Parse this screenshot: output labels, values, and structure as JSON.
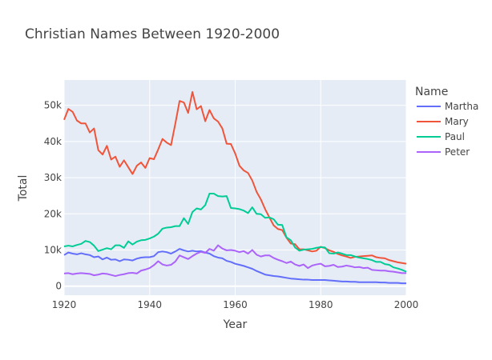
{
  "chart_data": {
    "type": "line",
    "title": "Christian Names Between 1920-2000",
    "xlabel": "Year",
    "ylabel": "Total",
    "xlim": [
      1920,
      2000
    ],
    "ylim": [
      -2500,
      57000
    ],
    "xticks": [
      1920,
      1940,
      1960,
      1980,
      2000
    ],
    "yticks": [
      0,
      10000,
      20000,
      30000,
      40000,
      50000
    ],
    "ytick_labels": [
      "0",
      "10k",
      "20k",
      "30k",
      "40k",
      "50k"
    ],
    "grid": true,
    "legend": {
      "title": "Name",
      "position": "right"
    },
    "x": [
      1920,
      1921,
      1922,
      1923,
      1924,
      1925,
      1926,
      1927,
      1928,
      1929,
      1930,
      1931,
      1932,
      1933,
      1934,
      1935,
      1936,
      1937,
      1938,
      1939,
      1940,
      1941,
      1942,
      1943,
      1944,
      1945,
      1946,
      1947,
      1948,
      1949,
      1950,
      1951,
      1952,
      1953,
      1954,
      1955,
      1956,
      1957,
      1958,
      1959,
      1960,
      1961,
      1962,
      1963,
      1964,
      1965,
      1966,
      1967,
      1968,
      1969,
      1970,
      1971,
      1972,
      1973,
      1974,
      1975,
      1976,
      1977,
      1978,
      1979,
      1980,
      1981,
      1982,
      1983,
      1984,
      1985,
      1986,
      1987,
      1988,
      1989,
      1990,
      1991,
      1992,
      1993,
      1994,
      1995,
      1996,
      1997,
      1998,
      1999,
      2000
    ],
    "series": [
      {
        "name": "Martha",
        "color": "#636efa",
        "values": [
          8600,
          9300,
          9000,
          8800,
          9100,
          8800,
          8600,
          8000,
          8200,
          7400,
          7900,
          7300,
          7400,
          6900,
          7400,
          7300,
          7100,
          7600,
          7900,
          8000,
          8000,
          8300,
          9400,
          9600,
          9400,
          9000,
          9600,
          10300,
          9900,
          9600,
          9800,
          9600,
          9700,
          9300,
          9000,
          8300,
          7900,
          7700,
          7000,
          6700,
          6200,
          5900,
          5600,
          5200,
          4800,
          4200,
          3700,
          3200,
          3000,
          2800,
          2700,
          2500,
          2300,
          2100,
          2000,
          1900,
          1800,
          1800,
          1700,
          1700,
          1700,
          1700,
          1600,
          1500,
          1400,
          1300,
          1300,
          1200,
          1200,
          1100,
          1100,
          1100,
          1100,
          1100,
          1000,
          1000,
          900,
          900,
          900,
          800,
          800
        ]
      },
      {
        "name": "Mary",
        "color": "#ef553b",
        "values": [
          46000,
          49000,
          48200,
          45800,
          45000,
          45000,
          42500,
          43600,
          37600,
          36400,
          38800,
          35000,
          35800,
          33000,
          34800,
          32900,
          31000,
          33300,
          34200,
          32700,
          35400,
          35100,
          37800,
          40700,
          39700,
          39000,
          44900,
          51200,
          50800,
          47900,
          53700,
          48900,
          49800,
          45600,
          48700,
          46400,
          45500,
          43600,
          39400,
          39300,
          36700,
          33300,
          32000,
          31300,
          29200,
          26100,
          24000,
          21300,
          19000,
          16800,
          15800,
          15500,
          13400,
          11800,
          11600,
          10200,
          10200,
          9900,
          9600,
          9800,
          10900,
          10500,
          9900,
          9500,
          8900,
          8500,
          8200,
          7800,
          8100,
          8200,
          8300,
          8400,
          8500,
          8000,
          7800,
          7700,
          7200,
          6900,
          6600,
          6400,
          6200
        ]
      },
      {
        "name": "Paul",
        "color": "#00cc96",
        "values": [
          11000,
          11200,
          11000,
          11400,
          11700,
          12500,
          12200,
          11200,
          9700,
          10100,
          10500,
          10200,
          11300,
          11300,
          10600,
          12400,
          11500,
          12300,
          12700,
          12800,
          13200,
          13700,
          14500,
          15900,
          16200,
          16300,
          16600,
          16600,
          18800,
          17200,
          20500,
          21500,
          21200,
          22400,
          25600,
          25600,
          24900,
          24800,
          24900,
          21600,
          21500,
          21300,
          20900,
          20200,
          21800,
          20000,
          19900,
          18900,
          19000,
          18500,
          17000,
          16900,
          13500,
          12700,
          10700,
          9800,
          10100,
          10200,
          10300,
          10600,
          10800,
          10700,
          9100,
          9000,
          9300,
          9000,
          8600,
          8600,
          8200,
          7900,
          7700,
          7500,
          7200,
          6700,
          6700,
          6100,
          5900,
          5200,
          4900,
          4500,
          4000
        ]
      },
      {
        "name": "Peter",
        "color": "#ab63fa",
        "values": [
          3500,
          3600,
          3300,
          3500,
          3600,
          3500,
          3400,
          3000,
          3200,
          3500,
          3400,
          3100,
          2800,
          3100,
          3300,
          3600,
          3700,
          3500,
          4300,
          4600,
          5000,
          5800,
          6900,
          6000,
          5700,
          5900,
          6800,
          8500,
          8000,
          7500,
          8300,
          9000,
          9500,
          9200,
          10300,
          9800,
          11300,
          10400,
          9900,
          10000,
          9800,
          9400,
          9700,
          9000,
          10000,
          8700,
          8200,
          8500,
          8500,
          7800,
          7300,
          6900,
          6400,
          6800,
          6000,
          5600,
          6000,
          5000,
          5700,
          6000,
          6200,
          5500,
          5600,
          5900,
          5300,
          5400,
          5700,
          5500,
          5200,
          5300,
          5000,
          5100,
          4500,
          4400,
          4300,
          4300,
          4100,
          4000,
          3800,
          3600,
          3600
        ]
      }
    ]
  }
}
